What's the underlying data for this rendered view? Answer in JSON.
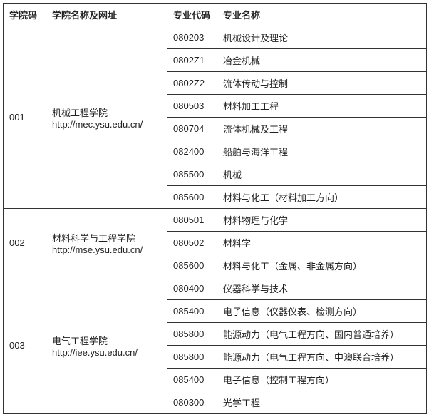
{
  "headers": {
    "college_code": "学院码",
    "college_name": "学院名称及网址",
    "major_code": "专业代码",
    "major_name": "专业名称"
  },
  "colleges": [
    {
      "code": "001",
      "name": "机械工程学院",
      "url": "http://mec.ysu.edu.cn/",
      "majors": [
        {
          "code": "080203",
          "name": "机械设计及理论"
        },
        {
          "code": "0802Z1",
          "name": "冶金机械"
        },
        {
          "code": "0802Z2",
          "name": "流体传动与控制"
        },
        {
          "code": "080503",
          "name": "材料加工工程"
        },
        {
          "code": "080704",
          "name": "流体机械及工程"
        },
        {
          "code": "082400",
          "name": "船舶与海洋工程"
        },
        {
          "code": "085500",
          "name": "机械"
        },
        {
          "code": "085600",
          "name": "材料与化工（材料加工方向）"
        }
      ]
    },
    {
      "code": "002",
      "name": "材料科学与工程学院",
      "url": "http://mse.ysu.edu.cn/",
      "majors": [
        {
          "code": "080501",
          "name": "材料物理与化学"
        },
        {
          "code": "080502",
          "name": "材料学"
        },
        {
          "code": "085600",
          "name": "材料与化工（金属、非金属方向）"
        }
      ]
    },
    {
      "code": "003",
      "name": "电气工程学院",
      "url": "http://iee.ysu.edu.cn/",
      "majors": [
        {
          "code": "080400",
          "name": "仪器科学与技术"
        },
        {
          "code": "085400",
          "name": "电子信息（仪器仪表、检测方向）"
        },
        {
          "code": "085800",
          "name": "能源动力（电气工程方向、国内普通培养）"
        },
        {
          "code": "085800",
          "name": "能源动力（电气工程方向、中澳联合培养）"
        },
        {
          "code": "085400",
          "name": "电子信息（控制工程方向）"
        },
        {
          "code": "080300",
          "name": "光学工程"
        }
      ]
    }
  ]
}
